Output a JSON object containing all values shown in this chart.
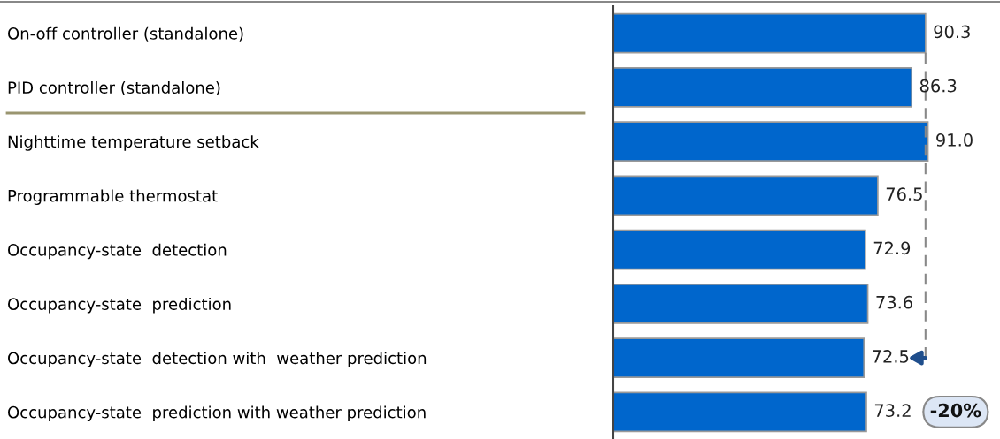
{
  "chart_data": {
    "type": "bar",
    "orientation": "horizontal",
    "categories": [
      "On-off controller (standalone)",
      "PID controller (standalone)",
      "Nighttime temperature setback",
      "Programmable thermostat",
      "Occupancy-state  detection",
      "Occupancy-state  prediction",
      "Occupancy-state  detection with  weather prediction",
      "Occupancy-state  prediction with weather prediction"
    ],
    "values": [
      90.3,
      86.3,
      91.0,
      76.5,
      72.9,
      73.6,
      72.5,
      73.2
    ],
    "color": "#0066cc",
    "value_labels": [
      "90.3",
      "86.3",
      "91.0",
      "76.5",
      "72.9",
      "73.6",
      "72.5",
      "73.2"
    ],
    "tick_labels": "y",
    "grid": false,
    "ref_lines": [
      {
        "axis": "x",
        "value": 90.3,
        "color": "#888888",
        "line_style": "dashed"
      }
    ],
    "annotations": [
      "-20%"
    ]
  }
}
